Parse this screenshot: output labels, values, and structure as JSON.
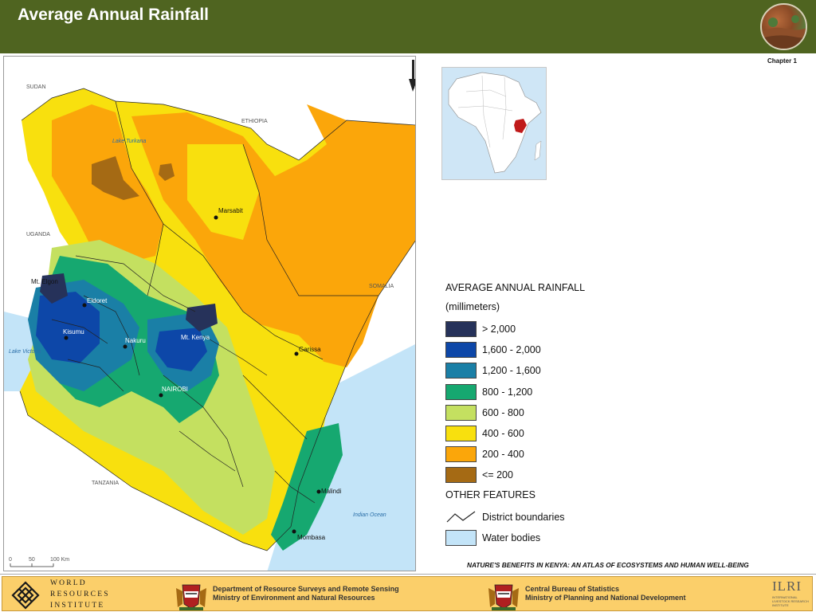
{
  "header": {
    "title": "Average Annual Rainfall",
    "chapter": "Chapter 1"
  },
  "map": {
    "country_labels": [
      "SUDAN",
      "ETHIOPIA",
      "UGANDA",
      "SOMALIA",
      "TANZANIA"
    ],
    "water_labels": [
      "Lake Turkana",
      "Lake Victoria",
      "Indian Ocean"
    ],
    "places": [
      "Marsabit",
      "Mt. Elgon",
      "Eldoret",
      "Kisumu",
      "Nakuru",
      "Mt. Kenya",
      "Garissa",
      "NAIROBI",
      "Malindi",
      "Mombasa"
    ],
    "scale_bar": [
      "0",
      "50",
      "100 Km"
    ]
  },
  "legend": {
    "title": "AVERAGE ANNUAL RAINFALL",
    "unit": "(millimeters)",
    "classes": [
      {
        "label": "> 2,000",
        "color": "#26325a"
      },
      {
        "label": "1,600 - 2,000",
        "color": "#0d47a8"
      },
      {
        "label": "1,200 - 1,600",
        "color": "#1a7fa6"
      },
      {
        "label": "800 - 1,200",
        "color": "#16a870"
      },
      {
        "label": "600 - 800",
        "color": "#c4e060"
      },
      {
        "label": "400 - 600",
        "color": "#f8e00e"
      },
      {
        "label": "200 - 400",
        "color": "#fba60a"
      },
      {
        "label": "<= 200",
        "color": "#a56a14"
      }
    ],
    "other_title": "OTHER FEATURES",
    "other": [
      {
        "label": "District boundaries"
      },
      {
        "label": "Water bodies",
        "color": "#c3e4f8"
      }
    ]
  },
  "credit": "NATURE'S BENEFITS IN KENYA: AN ATLAS OF ECOSYSTEMS AND HUMAN WELL-BEING",
  "footer": {
    "wri": [
      "WORLD",
      "RESOURCES",
      "INSTITUTE"
    ],
    "dept1": [
      "Department of Resource Surveys and Remote Sensing",
      "Ministry of Environment and Natural Resources"
    ],
    "dept2": [
      "Central Bureau of Statistics",
      "Ministry of Planning and National Development"
    ],
    "ilri": "ILRI",
    "ilri_sub": "INTERNATIONAL LIVESTOCK RESEARCH INSTITUTE"
  },
  "colors": {
    "header_bg": "#4f6420",
    "footer_bg": "#fbcf6a",
    "water": "#c3e4f8"
  }
}
